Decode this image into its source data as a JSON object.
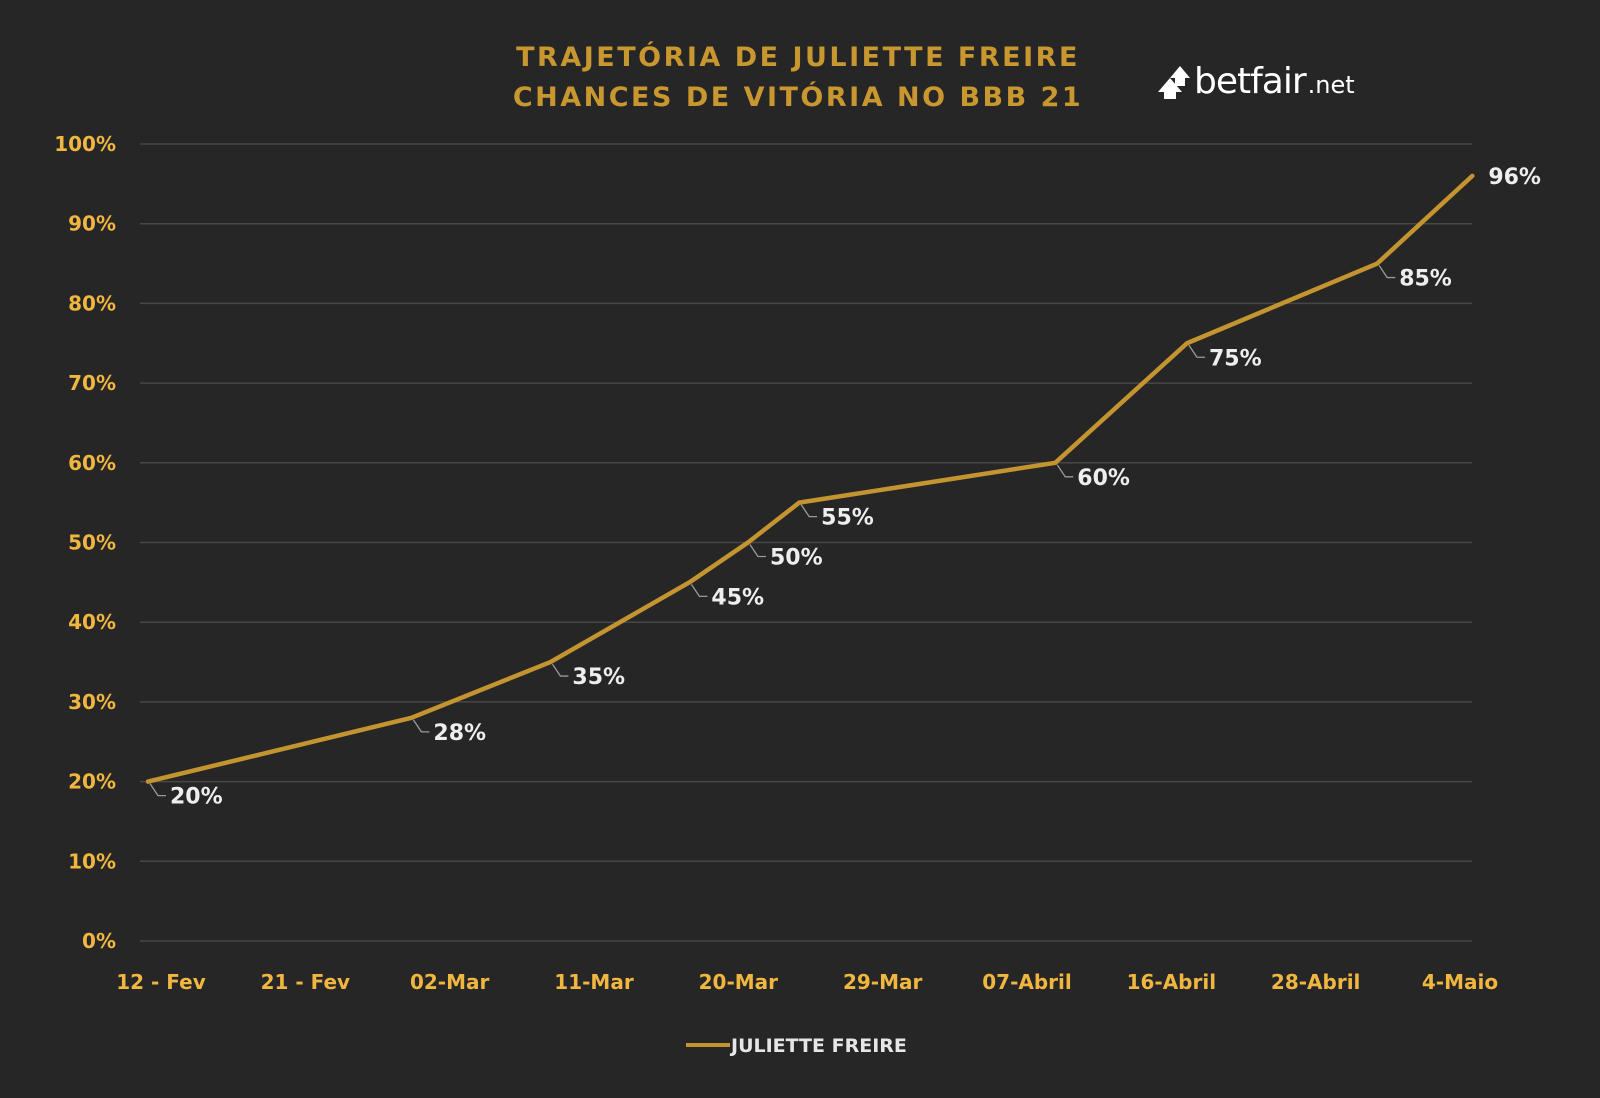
{
  "chart_data": {
    "type": "line",
    "title_lines": [
      "TRAJETÓRIA DE JULIETTE FREIRE",
      "CHANCES DE VITÓRIA NO BBB 21"
    ],
    "categories": [
      "12 - Fev",
      "21 - Fev",
      "02-Mar",
      "11-Mar",
      "20-Mar",
      "29-Mar",
      "07-Abril",
      "16-Abril",
      "28-Abril",
      "4-Maio"
    ],
    "y_ticks": [
      "0%",
      "10%",
      "20%",
      "30%",
      "40%",
      "50%",
      "60%",
      "70%",
      "80%",
      "90%",
      "100%"
    ],
    "ylim": [
      0,
      100
    ],
    "series": [
      {
        "name": "JULIETTE FREIRE",
        "color": "#c39430",
        "points": [
          {
            "x": 0.0,
            "y": 20,
            "label": "20%"
          },
          {
            "x": 1.8,
            "y": 28,
            "label": "28%"
          },
          {
            "x": 2.75,
            "y": 35,
            "label": "35%"
          },
          {
            "x": 3.7,
            "y": 45,
            "label": "45%"
          },
          {
            "x": 4.1,
            "y": 50,
            "label": "50%"
          },
          {
            "x": 4.45,
            "y": 55,
            "label": "55%"
          },
          {
            "x": 6.2,
            "y": 60,
            "label": "60%"
          },
          {
            "x": 7.1,
            "y": 75,
            "label": "75%"
          },
          {
            "x": 8.4,
            "y": 85,
            "label": "85%"
          },
          {
            "x": 9.05,
            "y": 96,
            "label": "96%"
          }
        ]
      }
    ],
    "grid": true,
    "legend": {
      "position": "bottom",
      "label": "JULIETTE FREIRE"
    },
    "colors": {
      "background": "#262626",
      "grid": "#474747",
      "tick_text": "#f0b640",
      "title_text": "#c9972f",
      "data_label_text": "#eeeeee",
      "leader_line": "#9a9a9a"
    }
  },
  "brand": {
    "name": "betfair",
    "suffix": ".net",
    "icon": "betfair-arrows-icon"
  }
}
